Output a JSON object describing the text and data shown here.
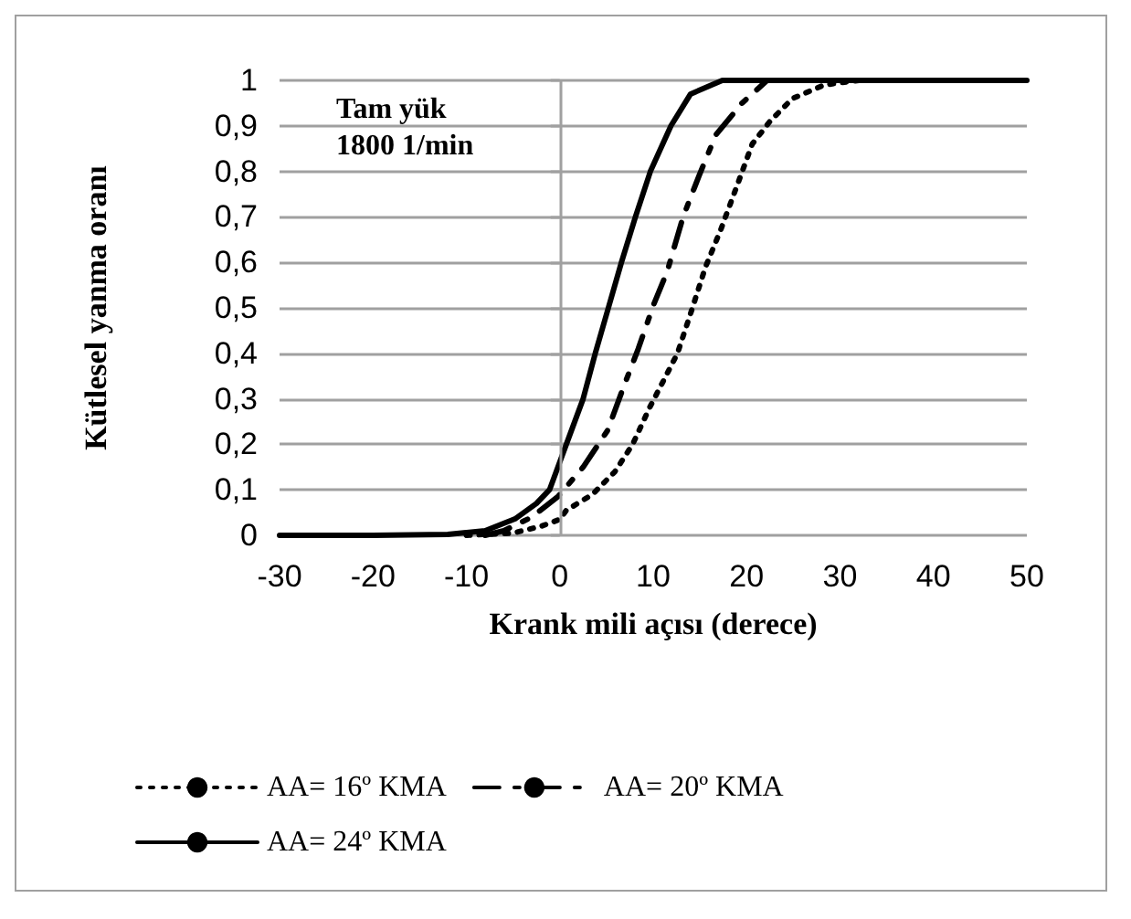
{
  "chart_data": {
    "type": "line",
    "xlabel": "Krank mili açısı (derece)",
    "ylabel": "Kütlesel yanma oranı",
    "annotations": [
      "Tam yük",
      "1800 1/min"
    ],
    "xlim": [
      -30,
      50
    ],
    "xticks": [
      -30,
      -20,
      -10,
      0,
      10,
      20,
      30,
      40,
      50
    ],
    "ylim": [
      0,
      1
    ],
    "yticks": [
      {
        "value": 0,
        "label": "0"
      },
      {
        "value": 0.1,
        "label": "0,1"
      },
      {
        "value": 0.2,
        "label": "0,2"
      },
      {
        "value": 0.3,
        "label": "0,3"
      },
      {
        "value": 0.4,
        "label": "0,4"
      },
      {
        "value": 0.5,
        "label": "0,5"
      },
      {
        "value": 0.6,
        "label": "0,6"
      },
      {
        "value": 0.7,
        "label": "0,7"
      },
      {
        "value": 0.8,
        "label": "0,8"
      },
      {
        "value": 0.9,
        "label": "0,9"
      },
      {
        "value": 1,
        "label": "1"
      }
    ],
    "grid": "y",
    "legend": "bottom",
    "marker": "none",
    "ref_lines": [
      {
        "axis": "x",
        "value": 0,
        "color": "#a0a0a0"
      }
    ],
    "series": [
      {
        "name": "AA= 16º KMA",
        "color": "#000000",
        "line_style": "dotted",
        "x": [
          -10,
          -5,
          -2,
          0,
          0.7,
          3.5,
          5.9,
          7.8,
          9.6,
          11.1,
          12.6,
          14.2,
          15.6,
          17.2,
          19,
          20.6,
          22.5,
          24.9,
          28.3,
          32,
          36
        ],
        "values": [
          0,
          0.005,
          0.02,
          0.035,
          0.055,
          0.09,
          0.14,
          0.2,
          0.28,
          0.34,
          0.4,
          0.5,
          0.59,
          0.67,
          0.77,
          0.86,
          0.91,
          0.96,
          0.99,
          1,
          1
        ]
      },
      {
        "name": "AA= 20º KMA",
        "color": "#000000",
        "line_style": "dashed",
        "x": [
          -8,
          -6,
          -3,
          -0.2,
          2.5,
          5.1,
          6.9,
          8.4,
          10.1,
          11.5,
          13.2,
          14.9,
          16.7,
          19.5,
          22.2,
          26
        ],
        "values": [
          0,
          0.01,
          0.04,
          0.085,
          0.15,
          0.23,
          0.33,
          0.41,
          0.51,
          0.58,
          0.7,
          0.79,
          0.88,
          0.95,
          1,
          1
        ]
      },
      {
        "name": "AA= 24º KMA",
        "color": "#000000",
        "line_style": "solid",
        "x": [
          -30,
          -20,
          -12,
          -8,
          -4.8,
          -2.5,
          -1.1,
          0.7,
          2.5,
          3.8,
          5.2,
          6.6,
          8.1,
          9.7,
          11.9,
          14,
          17.4,
          25,
          40,
          50
        ],
        "values": [
          0,
          0,
          0.002,
          0.01,
          0.036,
          0.07,
          0.1,
          0.2,
          0.3,
          0.4,
          0.5,
          0.6,
          0.7,
          0.8,
          0.9,
          0.97,
          1,
          1,
          1,
          1
        ]
      }
    ]
  }
}
